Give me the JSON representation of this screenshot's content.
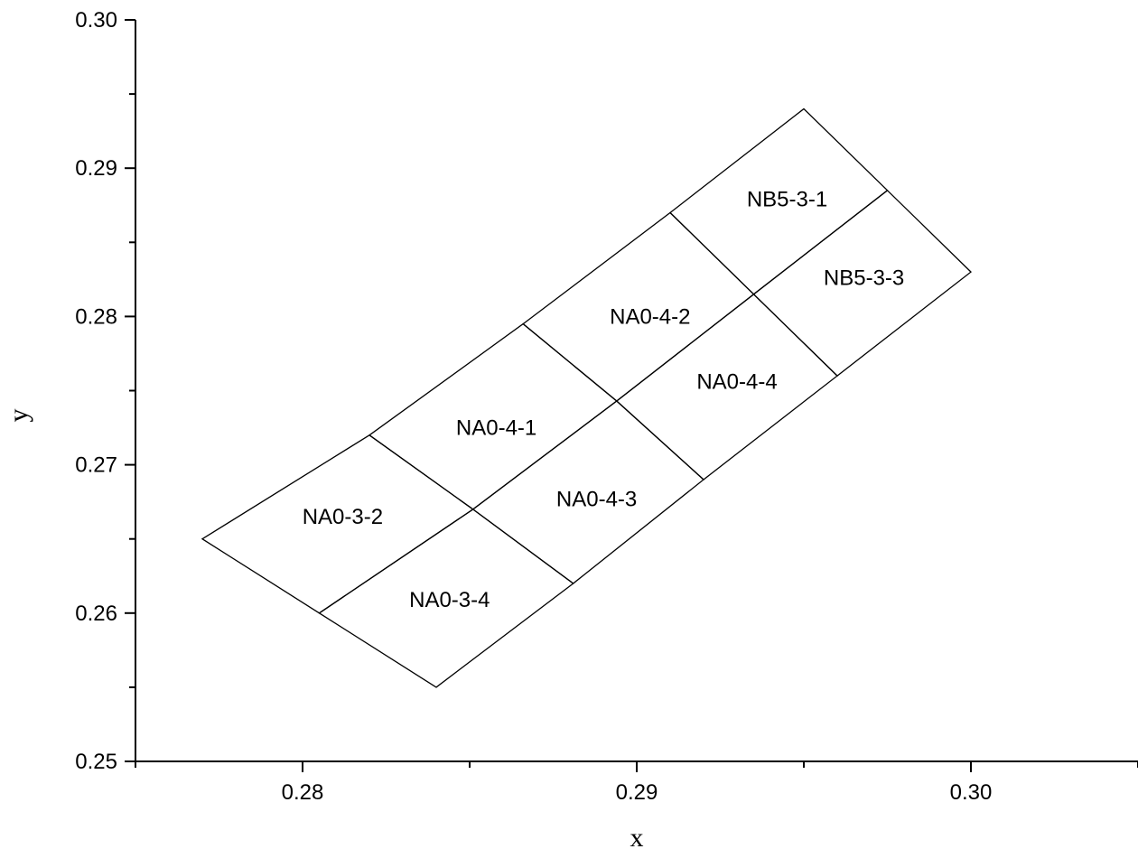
{
  "chart_data": {
    "type": "scatter",
    "title": "",
    "xlabel": "x",
    "ylabel": "y",
    "xlim": [
      0.275,
      0.305
    ],
    "ylim": [
      0.25,
      0.3
    ],
    "x_ticks": [
      {
        "value": 0.28,
        "label": "0.28"
      },
      {
        "value": 0.29,
        "label": "0.29"
      },
      {
        "value": 0.3,
        "label": "0.30"
      }
    ],
    "x_minor_ticks": [
      0.275,
      0.285,
      0.295,
      0.305
    ],
    "y_ticks": [
      {
        "value": 0.25,
        "label": "0.25"
      },
      {
        "value": 0.26,
        "label": "0.26"
      },
      {
        "value": 0.27,
        "label": "0.27"
      },
      {
        "value": 0.28,
        "label": "0.28"
      },
      {
        "value": 0.29,
        "label": "0.29"
      },
      {
        "value": 0.3,
        "label": "0.30"
      }
    ],
    "y_minor_ticks": [
      0.255,
      0.265,
      0.275,
      0.285,
      0.295
    ],
    "grid": false,
    "regions": [
      {
        "label": "NA0-3-2",
        "polygon": [
          [
            0.277,
            0.265
          ],
          [
            0.282,
            0.272
          ],
          [
            0.2851,
            0.267
          ],
          [
            0.2805,
            0.26
          ]
        ],
        "label_at": [
          0.2812,
          0.2664
        ]
      },
      {
        "label": "NA0-3-4",
        "polygon": [
          [
            0.2805,
            0.26
          ],
          [
            0.2851,
            0.267
          ],
          [
            0.2881,
            0.262
          ],
          [
            0.284,
            0.255
          ]
        ],
        "label_at": [
          0.2844,
          0.2608
        ]
      },
      {
        "label": "NA0-4-1",
        "polygon": [
          [
            0.282,
            0.272
          ],
          [
            0.2866,
            0.2795
          ],
          [
            0.2894,
            0.2743
          ],
          [
            0.2851,
            0.267
          ]
        ],
        "label_at": [
          0.2858,
          0.2724
        ]
      },
      {
        "label": "NA0-4-3",
        "polygon": [
          [
            0.2851,
            0.267
          ],
          [
            0.2894,
            0.2743
          ],
          [
            0.292,
            0.269
          ],
          [
            0.2881,
            0.262
          ]
        ],
        "label_at": [
          0.2888,
          0.2676
        ]
      },
      {
        "label": "NA0-4-2",
        "polygon": [
          [
            0.2866,
            0.2795
          ],
          [
            0.291,
            0.287
          ],
          [
            0.2935,
            0.2815
          ],
          [
            0.2894,
            0.2743
          ]
        ],
        "label_at": [
          0.2904,
          0.2799
        ]
      },
      {
        "label": "NA0-4-4",
        "polygon": [
          [
            0.2894,
            0.2743
          ],
          [
            0.2935,
            0.2815
          ],
          [
            0.296,
            0.276
          ],
          [
            0.292,
            0.269
          ]
        ],
        "label_at": [
          0.293,
          0.2755
        ]
      },
      {
        "label": "NB5-3-1",
        "polygon": [
          [
            0.291,
            0.287
          ],
          [
            0.295,
            0.294
          ],
          [
            0.2975,
            0.2885
          ],
          [
            0.2935,
            0.2815
          ]
        ],
        "label_at": [
          0.2945,
          0.2878
        ]
      },
      {
        "label": "NB5-3-3",
        "polygon": [
          [
            0.2935,
            0.2815
          ],
          [
            0.2975,
            0.2885
          ],
          [
            0.3,
            0.283
          ],
          [
            0.296,
            0.276
          ]
        ],
        "label_at": [
          0.2968,
          0.2825
        ]
      }
    ]
  }
}
